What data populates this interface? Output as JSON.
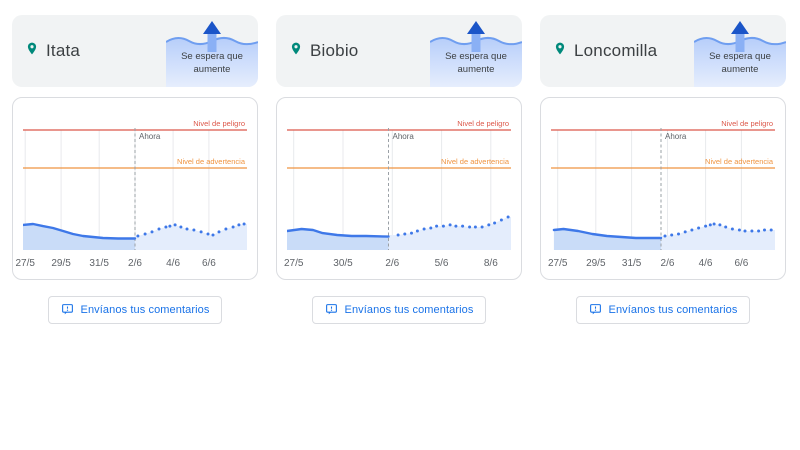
{
  "chart_labels": {
    "danger": "Nivel de peligro",
    "warning": "Nivel de advertencia",
    "now": "Ahora"
  },
  "colors": {
    "header_bg": "#f1f3f4",
    "card_border": "#dadce0",
    "accent_blue": "#1a73e8",
    "pin_teal": "#00897b",
    "danger": "#dc584a",
    "warning": "#ef9441",
    "series": "#3e78e8",
    "past_fill": "#c9dcf8",
    "forecast_fill": "#e4edfc",
    "grid": "#e8eaed",
    "now_line": "#9aa0a6",
    "axis_text": "#5f6368",
    "wave_stroke": "#6f9ef0",
    "wave_fill_top": "#b7cefa",
    "wave_fill_bottom": "#e6eefd",
    "arrow_head": "#1b55c8",
    "arrow_stem": "#8ab0f5"
  },
  "rivers": [
    {
      "name": "Itata",
      "trend_label": "Se espera que aumente",
      "feedback_label": "Envíanos tus comentarios",
      "chart_data": {
        "type": "line",
        "note": "x = fraction across plot, y = fraction of plot height above baseline (no numeric y-axis shown)",
        "x_ticks": [
          {
            "label": "27/5",
            "pos": 0.01
          },
          {
            "label": "29/5",
            "pos": 0.17
          },
          {
            "label": "31/5",
            "pos": 0.34
          },
          {
            "label": "2/6",
            "pos": 0.5
          },
          {
            "label": "4/6",
            "pos": 0.67
          },
          {
            "label": "6/6",
            "pos": 0.83
          }
        ],
        "now_pos": 0.5,
        "danger_level": 0.857,
        "warning_level": 0.586,
        "past": [
          [
            0.0,
            0.179
          ],
          [
            0.045,
            0.186
          ],
          [
            0.089,
            0.171
          ],
          [
            0.134,
            0.157
          ],
          [
            0.179,
            0.136
          ],
          [
            0.223,
            0.114
          ],
          [
            0.268,
            0.1
          ],
          [
            0.313,
            0.093
          ],
          [
            0.357,
            0.086
          ],
          [
            0.424,
            0.082
          ],
          [
            0.5,
            0.082
          ]
        ],
        "forecast": [
          [
            0.513,
            0.1
          ],
          [
            0.545,
            0.114
          ],
          [
            0.576,
            0.129
          ],
          [
            0.607,
            0.15
          ],
          [
            0.638,
            0.164
          ],
          [
            0.656,
            0.171
          ],
          [
            0.679,
            0.179
          ],
          [
            0.705,
            0.164
          ],
          [
            0.732,
            0.15
          ],
          [
            0.763,
            0.143
          ],
          [
            0.795,
            0.129
          ],
          [
            0.826,
            0.114
          ],
          [
            0.848,
            0.107
          ],
          [
            0.875,
            0.129
          ],
          [
            0.906,
            0.15
          ],
          [
            0.938,
            0.164
          ],
          [
            0.964,
            0.179
          ],
          [
            0.987,
            0.186
          ]
        ]
      }
    },
    {
      "name": "Biobio",
      "trend_label": "Se espera que aumente",
      "feedback_label": "Envíanos tus comentarios",
      "chart_data": {
        "type": "line",
        "note": "x = fraction across plot, y = fraction of plot height above baseline (no numeric y-axis shown)",
        "x_ticks": [
          {
            "label": "27/5",
            "pos": 0.03
          },
          {
            "label": "30/5",
            "pos": 0.25
          },
          {
            "label": "2/6",
            "pos": 0.47
          },
          {
            "label": "5/6",
            "pos": 0.69
          },
          {
            "label": "8/6",
            "pos": 0.91
          }
        ],
        "now_pos": 0.453,
        "danger_level": 0.857,
        "warning_level": 0.586,
        "past": [
          [
            0.0,
            0.136
          ],
          [
            0.065,
            0.15
          ],
          [
            0.116,
            0.143
          ],
          [
            0.159,
            0.121
          ],
          [
            0.224,
            0.107
          ],
          [
            0.289,
            0.1
          ],
          [
            0.353,
            0.1
          ],
          [
            0.453,
            0.096
          ]
        ],
        "forecast": [
          [
            0.496,
            0.107
          ],
          [
            0.526,
            0.114
          ],
          [
            0.556,
            0.121
          ],
          [
            0.582,
            0.136
          ],
          [
            0.612,
            0.15
          ],
          [
            0.642,
            0.157
          ],
          [
            0.668,
            0.171
          ],
          [
            0.698,
            0.171
          ],
          [
            0.728,
            0.179
          ],
          [
            0.754,
            0.171
          ],
          [
            0.784,
            0.171
          ],
          [
            0.815,
            0.164
          ],
          [
            0.841,
            0.164
          ],
          [
            0.871,
            0.164
          ],
          [
            0.901,
            0.179
          ],
          [
            0.927,
            0.193
          ],
          [
            0.957,
            0.214
          ],
          [
            0.987,
            0.236
          ]
        ]
      }
    },
    {
      "name": "Loncomilla",
      "trend_label": "Se espera que aumente",
      "feedback_label": "Envíanos tus comentarios",
      "chart_data": {
        "type": "line",
        "note": "x = fraction across plot, y = fraction of plot height above baseline (no numeric y-axis shown)",
        "x_ticks": [
          {
            "label": "27/5",
            "pos": 0.03
          },
          {
            "label": "29/5",
            "pos": 0.2
          },
          {
            "label": "31/5",
            "pos": 0.36
          },
          {
            "label": "2/6",
            "pos": 0.52
          },
          {
            "label": "4/6",
            "pos": 0.69
          },
          {
            "label": "6/6",
            "pos": 0.85
          }
        ],
        "now_pos": 0.491,
        "danger_level": 0.857,
        "warning_level": 0.586,
        "past": [
          [
            0.013,
            0.143
          ],
          [
            0.056,
            0.15
          ],
          [
            0.121,
            0.136
          ],
          [
            0.185,
            0.114
          ],
          [
            0.25,
            0.1
          ],
          [
            0.315,
            0.093
          ],
          [
            0.379,
            0.086
          ],
          [
            0.444,
            0.086
          ],
          [
            0.491,
            0.086
          ]
        ],
        "forecast": [
          [
            0.509,
            0.1
          ],
          [
            0.539,
            0.107
          ],
          [
            0.569,
            0.114
          ],
          [
            0.599,
            0.129
          ],
          [
            0.629,
            0.143
          ],
          [
            0.659,
            0.157
          ],
          [
            0.69,
            0.171
          ],
          [
            0.711,
            0.179
          ],
          [
            0.728,
            0.186
          ],
          [
            0.754,
            0.179
          ],
          [
            0.78,
            0.164
          ],
          [
            0.81,
            0.15
          ],
          [
            0.841,
            0.143
          ],
          [
            0.866,
            0.136
          ],
          [
            0.897,
            0.136
          ],
          [
            0.927,
            0.136
          ],
          [
            0.953,
            0.143
          ],
          [
            0.983,
            0.143
          ]
        ]
      }
    }
  ]
}
